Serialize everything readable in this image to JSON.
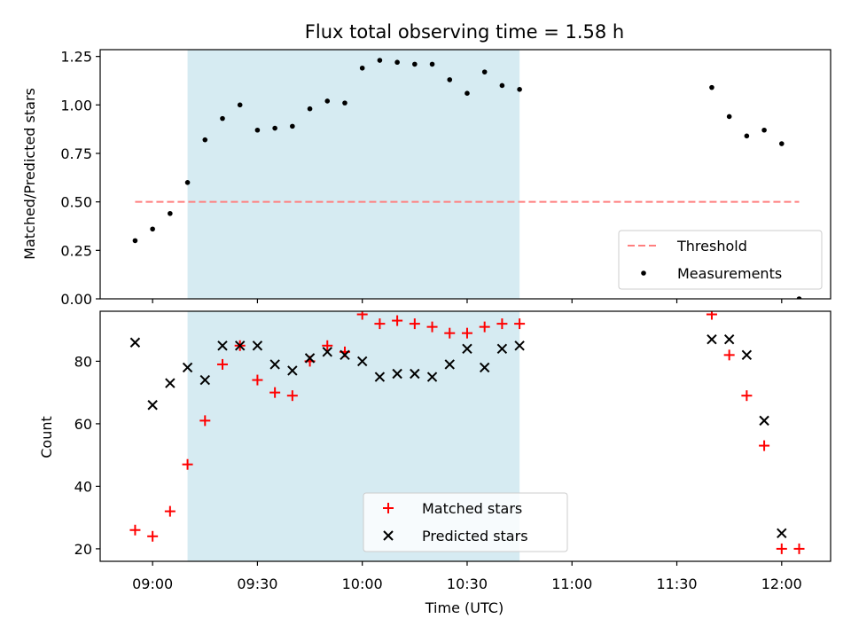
{
  "chart_data": {
    "title": "Flux total observing time = 1.58 h",
    "xlabel": "Time (UTC)",
    "x_ticks": [
      "09:00",
      "09:30",
      "10:00",
      "10:30",
      "11:00",
      "11:30",
      "12:00"
    ],
    "x_range": [
      "08:45",
      "12:14"
    ],
    "observing_window": [
      "09:10",
      "10:45"
    ],
    "observing_window_color": "#add8e6",
    "panels": [
      {
        "type": "scatter",
        "ylabel": "Matched/Predicted stars",
        "ylim": [
          0.0,
          1.285
        ],
        "y_ticks": [
          "0.00",
          "0.25",
          "0.50",
          "0.75",
          "1.00",
          "1.25"
        ],
        "threshold": {
          "name": "Threshold",
          "value": 0.5,
          "x_range": [
            "08:55",
            "12:05"
          ],
          "color": "#ff7f7f"
        },
        "series": [
          {
            "name": "Measurements",
            "color": "#000000",
            "marker": "dot",
            "points": [
              [
                "08:55",
                0.3
              ],
              [
                "09:00",
                0.36
              ],
              [
                "09:05",
                0.44
              ],
              [
                "09:10",
                0.6
              ],
              [
                "09:15",
                0.82
              ],
              [
                "09:20",
                0.93
              ],
              [
                "09:25",
                1.0
              ],
              [
                "09:30",
                0.87
              ],
              [
                "09:35",
                0.88
              ],
              [
                "09:40",
                0.89
              ],
              [
                "09:45",
                0.98
              ],
              [
                "09:50",
                1.02
              ],
              [
                "09:55",
                1.01
              ],
              [
                "10:00",
                1.19
              ],
              [
                "10:05",
                1.23
              ],
              [
                "10:10",
                1.22
              ],
              [
                "10:15",
                1.21
              ],
              [
                "10:20",
                1.21
              ],
              [
                "10:25",
                1.13
              ],
              [
                "10:30",
                1.06
              ],
              [
                "10:35",
                1.17
              ],
              [
                "10:40",
                1.1
              ],
              [
                "10:45",
                1.08
              ],
              [
                "11:40",
                1.09
              ],
              [
                "11:45",
                0.94
              ],
              [
                "11:50",
                0.84
              ],
              [
                "11:55",
                0.87
              ],
              [
                "12:00",
                0.8
              ],
              [
                "12:05",
                0.0
              ]
            ]
          }
        ],
        "legend": {
          "position": "lower right",
          "entries": [
            "Threshold",
            "Measurements"
          ]
        }
      },
      {
        "type": "scatter",
        "ylabel": "Count",
        "ylim": [
          16,
          96
        ],
        "y_ticks": [
          "20",
          "40",
          "60",
          "80"
        ],
        "series": [
          {
            "name": "Matched stars",
            "color": "#ff0000",
            "marker": "plus",
            "points": [
              [
                "08:55",
                26
              ],
              [
                "09:00",
                24
              ],
              [
                "09:05",
                32
              ],
              [
                "09:10",
                47
              ],
              [
                "09:15",
                61
              ],
              [
                "09:20",
                79
              ],
              [
                "09:25",
                85
              ],
              [
                "09:30",
                74
              ],
              [
                "09:35",
                70
              ],
              [
                "09:40",
                69
              ],
              [
                "09:45",
                80
              ],
              [
                "09:50",
                85
              ],
              [
                "09:55",
                83
              ],
              [
                "10:00",
                95
              ],
              [
                "10:05",
                92
              ],
              [
                "10:10",
                93
              ],
              [
                "10:15",
                92
              ],
              [
                "10:20",
                91
              ],
              [
                "10:25",
                89
              ],
              [
                "10:30",
                89
              ],
              [
                "10:35",
                91
              ],
              [
                "10:40",
                92
              ],
              [
                "10:45",
                92
              ],
              [
                "11:40",
                95
              ],
              [
                "11:45",
                82
              ],
              [
                "11:50",
                69
              ],
              [
                "11:55",
                53
              ],
              [
                "12:00",
                20
              ],
              [
                "12:05",
                20
              ]
            ]
          },
          {
            "name": "Predicted stars",
            "color": "#000000",
            "marker": "x",
            "points": [
              [
                "08:55",
                86
              ],
              [
                "09:00",
                66
              ],
              [
                "09:05",
                73
              ],
              [
                "09:10",
                78
              ],
              [
                "09:15",
                74
              ],
              [
                "09:20",
                85
              ],
              [
                "09:25",
                85
              ],
              [
                "09:30",
                85
              ],
              [
                "09:35",
                79
              ],
              [
                "09:40",
                77
              ],
              [
                "09:45",
                81
              ],
              [
                "09:50",
                83
              ],
              [
                "09:55",
                82
              ],
              [
                "10:00",
                80
              ],
              [
                "10:05",
                75
              ],
              [
                "10:10",
                76
              ],
              [
                "10:15",
                76
              ],
              [
                "10:20",
                75
              ],
              [
                "10:25",
                79
              ],
              [
                "10:30",
                84
              ],
              [
                "10:35",
                78
              ],
              [
                "10:40",
                84
              ],
              [
                "10:45",
                85
              ],
              [
                "11:40",
                87
              ],
              [
                "11:45",
                87
              ],
              [
                "11:50",
                82
              ],
              [
                "11:55",
                61
              ],
              [
                "12:00",
                25
              ]
            ]
          }
        ],
        "legend": {
          "position": "lower center",
          "entries": [
            "Matched stars",
            "Predicted stars"
          ]
        }
      }
    ]
  }
}
